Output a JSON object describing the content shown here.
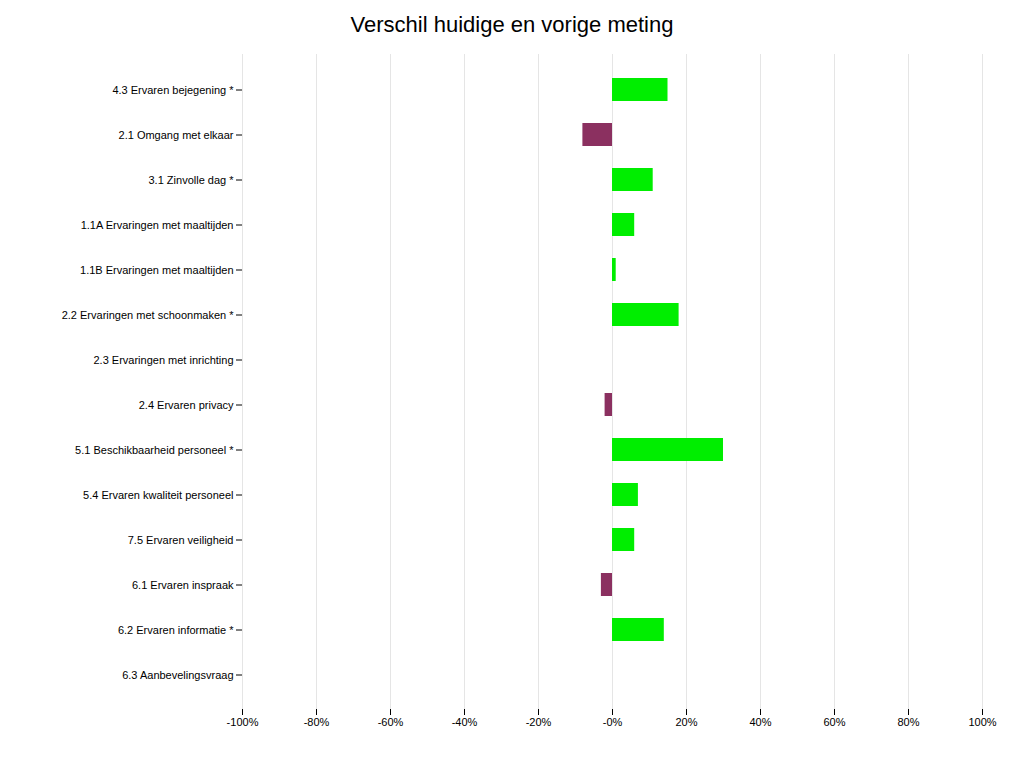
{
  "chart_data": {
    "type": "bar",
    "orientation": "horizontal",
    "title": "Verschil huidige en vorige meting",
    "categories": [
      "4.3 Ervaren bejegening *",
      "2.1 Omgang met elkaar",
      "3.1 Zinvolle dag *",
      "1.1A Ervaringen met maaltijden",
      "1.1B Ervaringen met maaltijden",
      "2.2 Ervaringen met schoonmaken *",
      "2.3 Ervaringen met inrichting",
      "2.4 Ervaren privacy",
      "5.1 Beschikbaarheid personeel *",
      "5.4 Ervaren kwaliteit personeel",
      "7.5 Ervaren veiligheid",
      "6.1 Ervaren inspraak",
      "6.2 Ervaren informatie *",
      "6.3 Aanbevelingsvraag"
    ],
    "values": [
      15,
      -8,
      11,
      6,
      1,
      18,
      0,
      -2,
      30,
      7,
      6,
      -3,
      14,
      0
    ],
    "colors": [
      "#00ee00",
      "#8B3060",
      "#00ee00",
      "#00ee00",
      "#00ee00",
      "#00ee00",
      "#8B3060",
      "#8B3060",
      "#00ee00",
      "#00ee00",
      "#00ee00",
      "#8B3060",
      "#00ee00",
      "#8B3060"
    ],
    "xlim": [
      -100,
      100
    ],
    "xticks": [
      {
        "value": -100,
        "label": "-100%"
      },
      {
        "value": -80,
        "label": "-80%"
      },
      {
        "value": -60,
        "label": "-60%"
      },
      {
        "value": -40,
        "label": "-40%"
      },
      {
        "value": -20,
        "label": "-20%"
      },
      {
        "value": 0,
        "label": "-0%"
      },
      {
        "value": 20,
        "label": "20%"
      },
      {
        "value": 40,
        "label": "40%"
      },
      {
        "value": 60,
        "label": "60%"
      },
      {
        "value": 80,
        "label": "80%"
      },
      {
        "value": 100,
        "label": "100%"
      }
    ],
    "grid": true
  }
}
